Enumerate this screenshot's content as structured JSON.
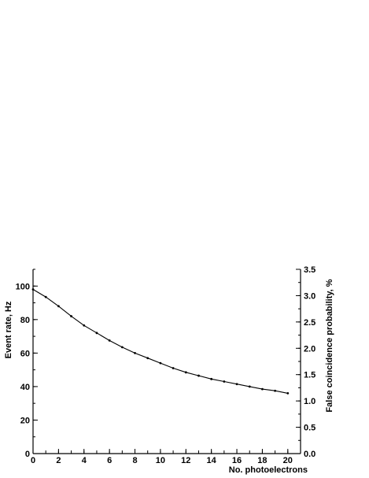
{
  "chart_data": {
    "type": "line",
    "title": "",
    "xlabel": "No. photoelectrons",
    "ylabel": "Event rate, Hz",
    "y2label": "False coincidence probability, %",
    "xlim": [
      0,
      21
    ],
    "ylim": [
      0,
      110
    ],
    "y2lim": [
      0,
      3.5
    ],
    "x_ticks": [
      "0",
      "2",
      "4",
      "6",
      "8",
      "10",
      "12",
      "14",
      "16",
      "18",
      "20"
    ],
    "y_ticks": [
      "0",
      "20",
      "40",
      "60",
      "80",
      "100"
    ],
    "y2_ticks": [
      "0.0",
      "0.5",
      "1.0",
      "1.5",
      "2.0",
      "2.5",
      "3.0",
      "3.5"
    ],
    "grid": false,
    "series": [
      {
        "x": [
          0,
          1,
          2,
          3,
          4,
          5,
          6,
          7,
          8,
          9,
          10,
          11,
          12,
          13,
          14,
          15,
          16,
          17,
          18,
          19,
          20
        ],
        "values": [
          98,
          93.5,
          88,
          82,
          76.5,
          72,
          67.5,
          63.5,
          60,
          57,
          54,
          51,
          48.5,
          46.5,
          44.5,
          43,
          41.5,
          40,
          38.5,
          37.5,
          36
        ]
      }
    ]
  }
}
